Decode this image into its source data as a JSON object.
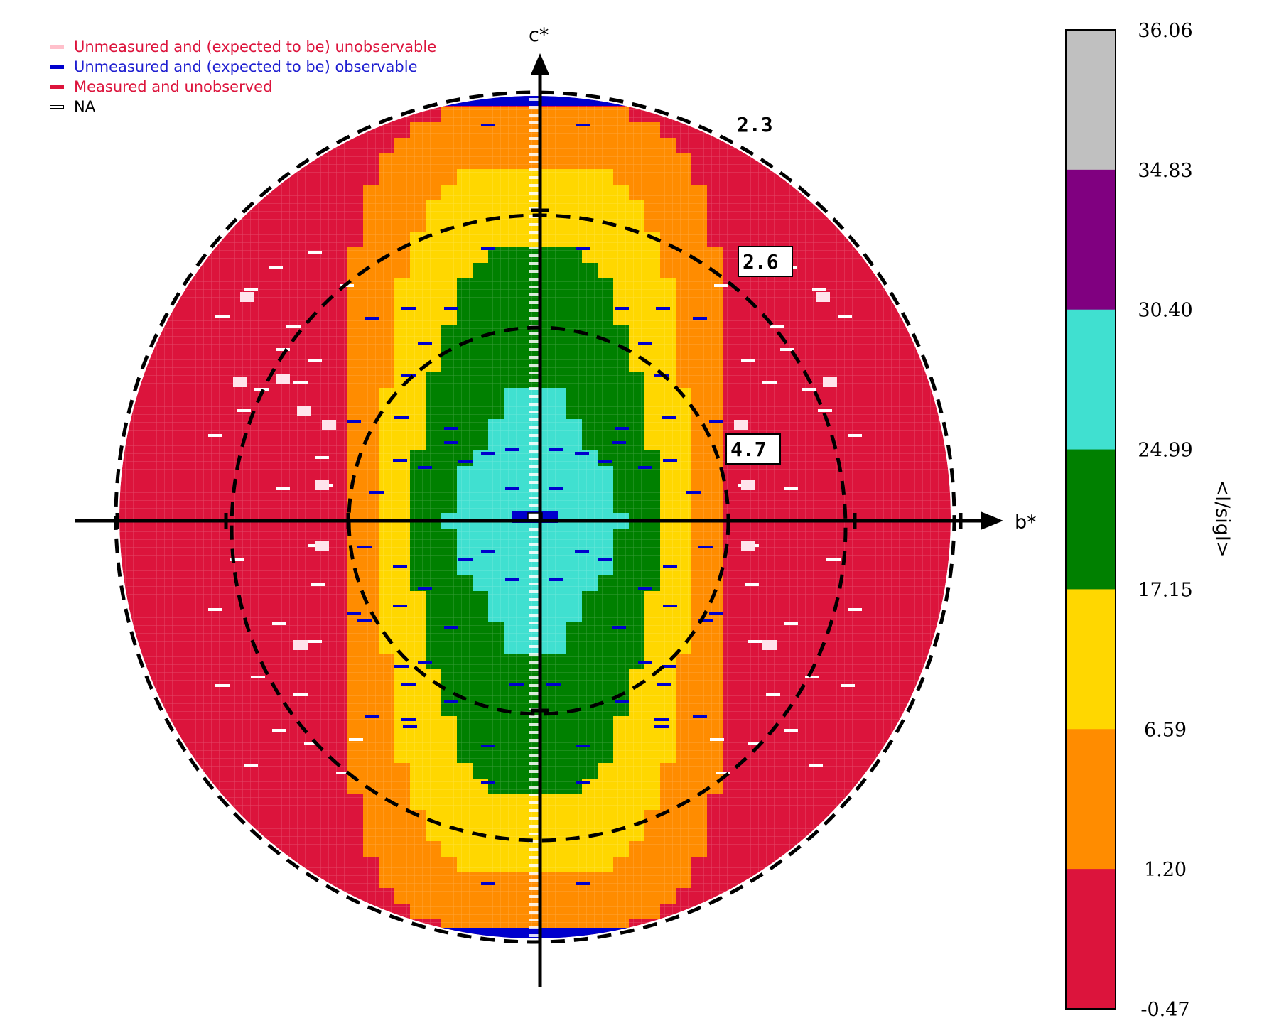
{
  "legend": [
    {
      "label": "Unmeasured and (expected to be) unobservable",
      "color": "#ffc0cb",
      "text_color": "#dc143c"
    },
    {
      "label": "Unmeasured and (expected to be) observable",
      "color": "#0000cd",
      "text_color": "#1f1fd0"
    },
    {
      "label": "Measured and unobserved",
      "color": "#dc143c",
      "text_color": "#dc143c"
    },
    {
      "label": "NA",
      "color": "#ffffff",
      "text_color": "#000000"
    }
  ],
  "axes": {
    "x_label": "b*",
    "y_label": "c*"
  },
  "resolution_rings": [
    "2.3",
    "2.6",
    "4.7"
  ],
  "colorbar": {
    "label": "<I/sigI>",
    "ticks": [
      "36.06",
      "34.83",
      "30.40",
      "24.99",
      "17.15",
      "6.59",
      "1.20",
      "-0.47"
    ],
    "colors": [
      "#c0c0c0",
      "#800080",
      "#40e0d0",
      "#008000",
      "#ffd700",
      "#ff8c00",
      "#dc143c"
    ]
  },
  "chart_data": {
    "type": "heatmap",
    "title": "",
    "xlabel": "b*",
    "ylabel": "c*",
    "value_label": "<I/sigI>",
    "bin_boundaries": [
      -0.47,
      1.2,
      6.59,
      17.15,
      24.99,
      30.4,
      34.83,
      36.06
    ],
    "bin_colors": [
      "#dc143c",
      "#ff8c00",
      "#ffd700",
      "#008000",
      "#40e0d0",
      "#800080",
      "#c0c0c0"
    ],
    "resolution_rings_angstrom": [
      2.3,
      2.6,
      4.7
    ],
    "regions": [
      {
        "level": "0.37",
        "bin": "-0.47 to 1.20",
        "color": "#dc143c"
      },
      {
        "level": "3.9",
        "bin": "1.20 to 6.59",
        "color": "#ff8c00"
      },
      {
        "level": "11.9",
        "bin": "6.59 to 17.15",
        "color": "#ffd700"
      },
      {
        "level": "21.1",
        "bin": "17.15 to 24.99",
        "color": "#008000"
      },
      {
        "level": "27.7",
        "bin": "24.99 to 30.40",
        "color": "#40e0d0"
      }
    ]
  }
}
